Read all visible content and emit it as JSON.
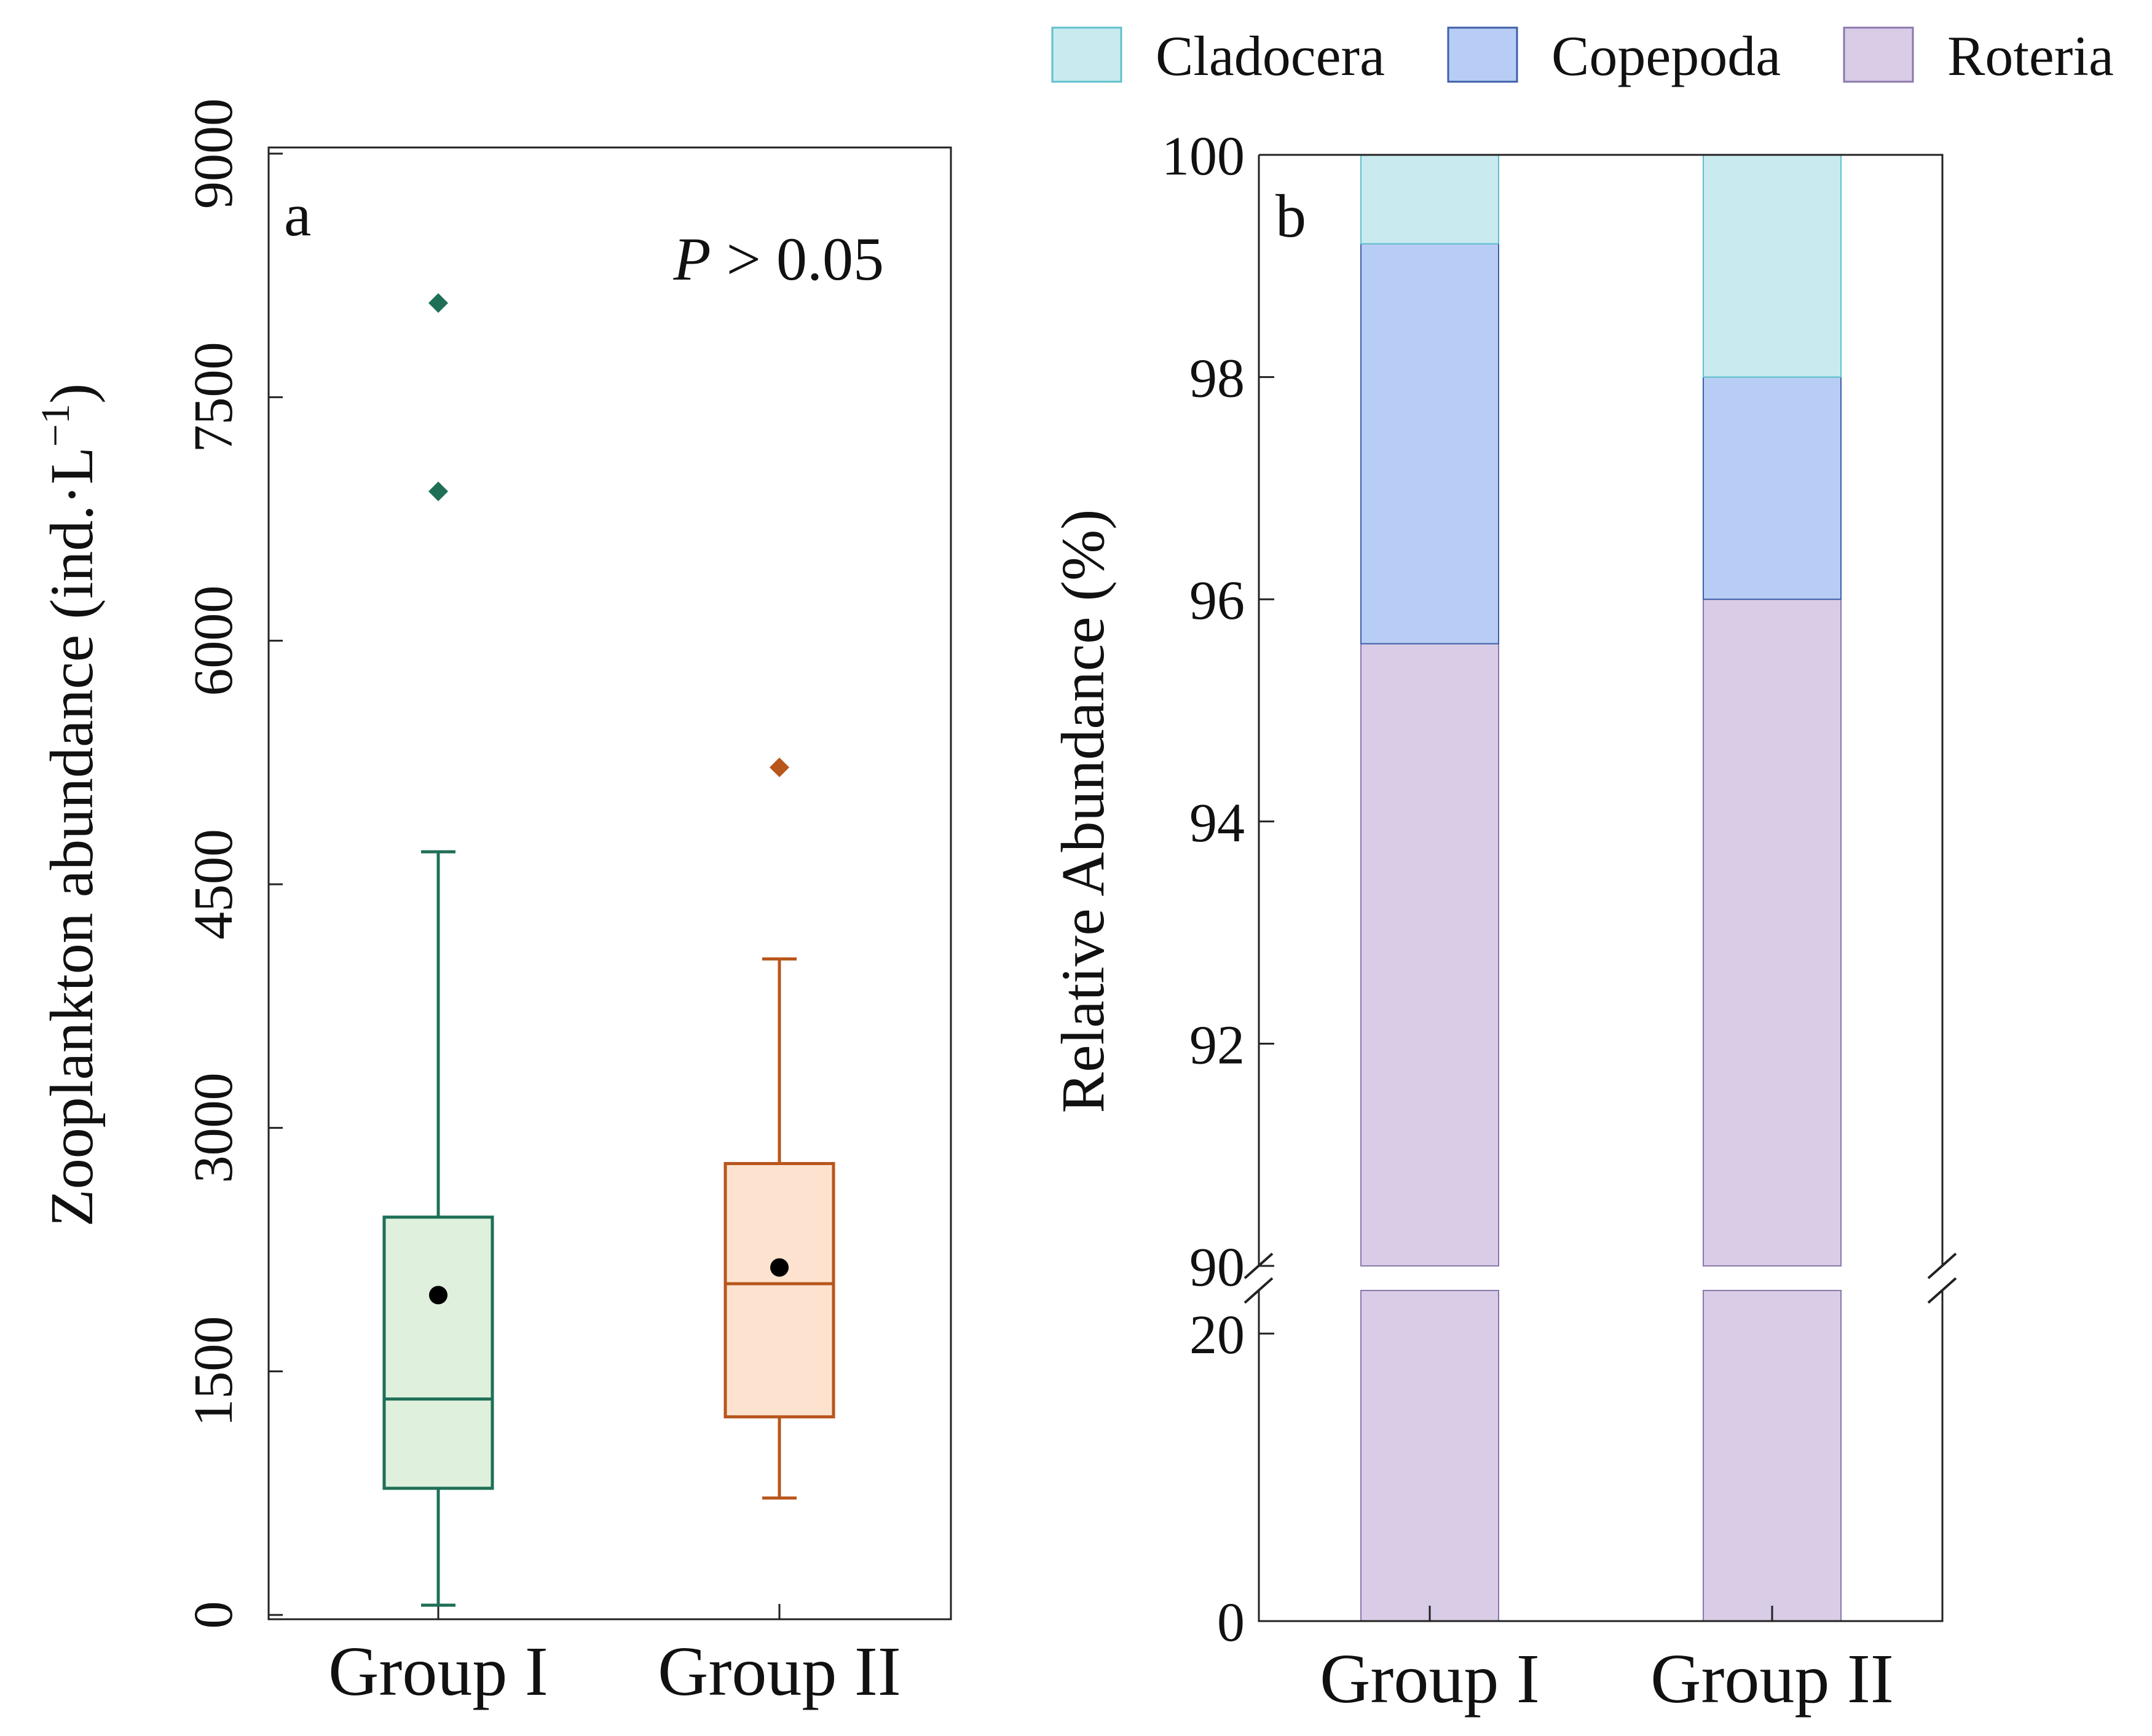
{
  "chart_data": [
    {
      "type": "box",
      "panel_label": "a",
      "annotation": {
        "italic": "P",
        "rest": " > 0.05"
      },
      "ylabel": "Zooplankton abundance (ind.·L",
      "ylabel_sup": "−1",
      "ylabel_close": ")",
      "ylim": [
        0,
        9000
      ],
      "yticks": [
        "0",
        "1500",
        "3000",
        "4500",
        "6000",
        "7500",
        "9000"
      ],
      "categories": [
        "Group I",
        "Group II"
      ],
      "groups": [
        {
          "name": "Group I",
          "color": "#1f6f57",
          "fill": "#dff0dc",
          "whisker_low": 60,
          "q1": 780,
          "median": 1330,
          "q3": 2450,
          "whisker_high": 4700,
          "mean": 1970,
          "outliers": [
            6920,
            8080
          ]
        },
        {
          "name": "Group II",
          "color": "#b8561c",
          "fill": "#fde3cf",
          "whisker_low": 720,
          "q1": 1220,
          "median": 2040,
          "q3": 2780,
          "whisker_high": 4040,
          "mean": 2140,
          "outliers": [
            5220
          ]
        }
      ]
    },
    {
      "type": "stacked_bar",
      "panel_label": "b",
      "ylabel": "Relative Abundance (%)",
      "upper_ylim": [
        90,
        100
      ],
      "upper_yticks": [
        "90",
        "92",
        "94",
        "96",
        "98",
        "100"
      ],
      "lower_ylim": [
        0,
        23
      ],
      "lower_yticks": [
        "0",
        "20"
      ],
      "categories": [
        "Group I",
        "Group II"
      ],
      "series": [
        {
          "name": "Roteria",
          "values": [
            95.6,
            96.0
          ],
          "color": "#d9cce6",
          "edge": "#8a78ad"
        },
        {
          "name": "Copepoda",
          "values": [
            3.6,
            2.0
          ],
          "color": "#b8cdf5",
          "edge": "#3d5fa8"
        },
        {
          "name": "Cladocera",
          "values": [
            0.8,
            2.0
          ],
          "color": "#c9ebf0",
          "edge": "#5fc0cc"
        }
      ],
      "legend": [
        "Cladocera",
        "Copepoda",
        "Roteria"
      ]
    }
  ]
}
